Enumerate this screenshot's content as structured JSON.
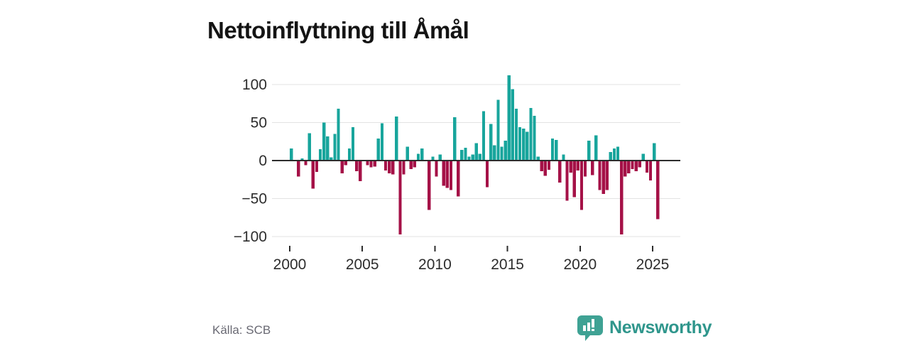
{
  "header": {
    "title": "Nettoinflyttning till Åmål"
  },
  "footer": {
    "source_label": "Källa: SCB",
    "brand_name": "Newsworthy"
  },
  "colors": {
    "positive_bar": "#18a59c",
    "negative_bar": "#a51147",
    "brand_teal": "#3fa294",
    "axis_text": "#2d2d2d",
    "gridline": "#e3e3e3",
    "source_text": "#696973"
  },
  "chart_data": {
    "type": "bar",
    "title": "Nettoinflyttning till Åmål",
    "period": "quarterly",
    "start_period": "2000-Q1",
    "end_period": "2025-Q2",
    "values": [
      16,
      0,
      -21,
      3,
      -6,
      36,
      -37,
      -15,
      15,
      50,
      32,
      4,
      35,
      68,
      -17,
      -6,
      16,
      44,
      -14,
      -27,
      0,
      -6,
      -9,
      -8,
      29,
      49,
      -13,
      -17,
      -18,
      58,
      -97,
      -18,
      18,
      -11,
      -9,
      9,
      16,
      0,
      -65,
      5,
      -21,
      8,
      -33,
      -36,
      -39,
      57,
      -47,
      14,
      17,
      5,
      8,
      23,
      9,
      65,
      -35,
      48,
      20,
      80,
      18,
      26,
      112,
      94,
      68,
      44,
      42,
      38,
      69,
      59,
      5,
      -14,
      -20,
      -12,
      29,
      27,
      -29,
      8,
      -53,
      -16,
      -48,
      -13,
      -65,
      -21,
      26,
      -19,
      33,
      -39,
      -44,
      -39,
      11,
      16,
      18,
      -97,
      -21,
      -17,
      -11,
      -14,
      -9,
      9,
      -16,
      -26,
      23,
      -77
    ],
    "x_tick_labels": [
      "2000",
      "2005",
      "2010",
      "2015",
      "2020",
      "2025"
    ],
    "y_ticks": [
      100,
      50,
      0,
      -50,
      -100
    ],
    "y_tick_labels": [
      "100",
      "50",
      "0",
      "−50",
      "−100"
    ],
    "ylim": [
      -110,
      120
    ],
    "grid": "horizontal",
    "legend": "none",
    "positive_color": "#18a59c",
    "negative_color": "#a51147",
    "source": "Källa: SCB"
  }
}
